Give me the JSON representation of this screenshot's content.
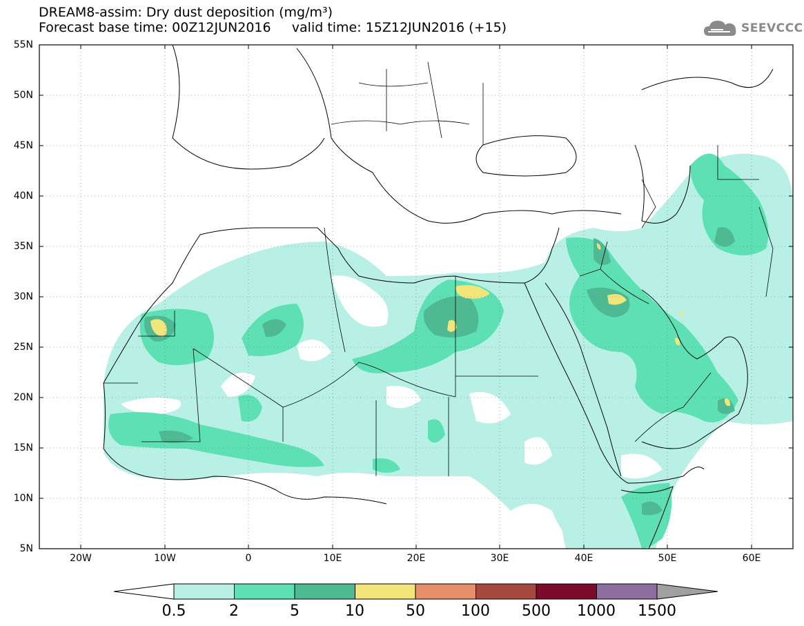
{
  "title": {
    "line1": "DREAM8-assim: Dry dust deposition (mg/m³)",
    "line2": "Forecast base time: 00Z12JUN2016     valid time: 15Z12JUN2016 (+15)"
  },
  "logo": {
    "text": "SEEVCCC",
    "icon": "cloud-icon"
  },
  "axes": {
    "lat_labels": [
      "55N",
      "50N",
      "45N",
      "40N",
      "35N",
      "30N",
      "25N",
      "20N",
      "15N",
      "10N",
      "5N"
    ],
    "lon_labels": [
      "20W",
      "10W",
      "0",
      "10E",
      "20E",
      "30E",
      "40E",
      "50E",
      "60E"
    ],
    "lat_range": [
      5,
      55
    ],
    "lon_range": [
      -25,
      65
    ]
  },
  "colorbar": {
    "labels": [
      "0.5",
      "2",
      "5",
      "10",
      "50",
      "100",
      "500",
      "1000",
      "1500"
    ],
    "colors": [
      "#b9f0e6",
      "#5de1b4",
      "#4fb993",
      "#f2e57a",
      "#e88f6a",
      "#a7483e",
      "#7d0b2b",
      "#8e6ea1"
    ],
    "under_color": "#ffffff",
    "over_color": "#a0a0a0"
  }
}
